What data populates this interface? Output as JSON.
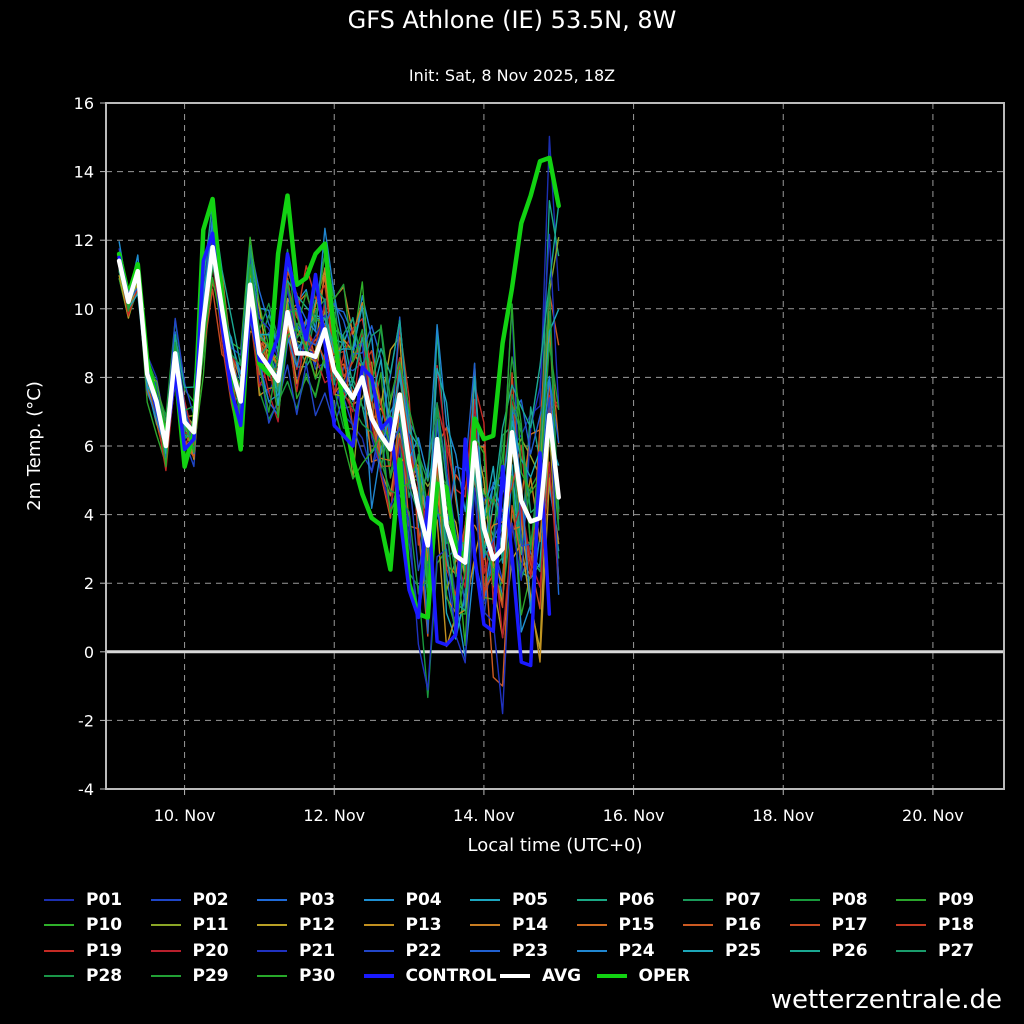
{
  "header": {
    "title": "GFS Athlone (IE) 53.5N, 8W",
    "subtitle": "Init: Sat, 8 Nov 2025, 18Z"
  },
  "watermark": "wetterzentrale.de",
  "colors": {
    "background": "#000000",
    "grid": "#9a9a9a",
    "frame": "#bbbbbb",
    "control": "#1a1aff",
    "avg": "#ffffff",
    "oper": "#12d212"
  },
  "chart_data": {
    "type": "line",
    "title": "GFS Athlone (IE) 53.5N, 8W",
    "subtitle": "Init: Sat, 8 Nov 2025, 18Z",
    "xlabel": "Local time (UTC+0)",
    "ylabel": "2m Temp. (°C)",
    "x_unit": "days since 9 Nov 00:00 UTC",
    "xlim": [
      -0.05,
      11.95
    ],
    "ylim": [
      -4,
      16
    ],
    "yticks": [
      -4,
      -2,
      0,
      2,
      4,
      6,
      8,
      10,
      12,
      14,
      16
    ],
    "xticks": [
      {
        "x": 1,
        "label": "10. Nov"
      },
      {
        "x": 3,
        "label": "12. Nov"
      },
      {
        "x": 5,
        "label": "14. Nov"
      },
      {
        "x": 7,
        "label": "16. Nov"
      },
      {
        "x": 9,
        "label": "18. Nov"
      },
      {
        "x": 11,
        "label": "20. Nov"
      }
    ],
    "grid": true,
    "x": [
      0.125,
      0.25,
      0.375,
      0.5,
      0.625,
      0.75,
      0.875,
      1.0,
      1.125,
      1.25,
      1.375,
      1.5,
      1.625,
      1.75,
      1.875,
      2.0,
      2.125,
      2.25,
      2.375,
      2.5,
      2.625,
      2.75,
      2.875,
      3.0,
      3.125,
      3.25,
      3.375,
      3.5,
      3.625,
      3.75,
      3.875,
      4.0,
      4.125,
      4.25,
      4.375,
      4.5,
      4.625,
      4.75,
      4.875,
      5.0,
      5.125,
      5.25,
      5.375,
      5.5,
      5.625,
      5.75,
      5.875,
      6.0,
      6.125,
      6.25,
      6.375,
      6.5,
      6.625,
      6.75,
      6.875,
      7.0,
      7.125,
      7.25,
      7.375,
      7.5,
      7.625,
      7.75,
      7.875,
      8.0,
      8.125,
      8.25,
      8.375,
      8.5,
      8.625,
      8.75,
      8.875,
      9.0,
      9.125,
      9.25,
      9.375,
      9.5,
      9.625,
      9.75,
      9.875,
      10.0,
      10.125,
      10.25,
      10.375,
      10.5,
      10.625,
      10.75,
      10.875,
      11.0,
      11.125,
      11.25,
      11.375,
      11.5,
      11.625,
      11.75
    ],
    "series": [
      {
        "name": "OPER",
        "color": "#12d212",
        "width": 4.5,
        "values": [
          11.6,
          10.4,
          11.3,
          8.5,
          7.3,
          6.2,
          8.3,
          5.4,
          6.4,
          12.3,
          13.2,
          10.3,
          7.7,
          5.9,
          10.4,
          8.4,
          8.1,
          11.6,
          13.3,
          10.7,
          10.9,
          11.6,
          11.9,
          9.3,
          7.0,
          5.6,
          4.6,
          3.9,
          3.7,
          2.4,
          5.6,
          2.0,
          1.1,
          1.0,
          4.9,
          4.8,
          3.0,
          2.8,
          6.8,
          6.2,
          6.3,
          9.0,
          10.6,
          12.5,
          13.3,
          14.3,
          14.4,
          13.0,
          null,
          null,
          null,
          null,
          null,
          null,
          null,
          null,
          null,
          null,
          null,
          null,
          null,
          null,
          null,
          null,
          null,
          null,
          null,
          null,
          null,
          null,
          null,
          null,
          null,
          null,
          null,
          null,
          null,
          null,
          null,
          null,
          null,
          null,
          null,
          null,
          null,
          null,
          null,
          null,
          null,
          null,
          null,
          null,
          null,
          null
        ]
      },
      {
        "name": "CONTROL",
        "color": "#1a1aff",
        "width": 3.5,
        "values": [
          11.5,
          10.3,
          11.1,
          8.2,
          7.1,
          6.0,
          8.1,
          5.9,
          6.2,
          11.4,
          12.2,
          9.5,
          7.6,
          6.6,
          10.0,
          8.5,
          8.4,
          9.2,
          11.6,
          10.2,
          9.1,
          11.0,
          9.0,
          6.6,
          6.3,
          6.0,
          8.3,
          8.0,
          6.5,
          6.8,
          4.0,
          1.8,
          1.0,
          4.5,
          0.3,
          0.2,
          0.5,
          6.2,
          2.8,
          0.8,
          0.6,
          5.4,
          2.8,
          -0.3,
          -0.4,
          5.8,
          1.1,
          null,
          null,
          null,
          null,
          null,
          null,
          null,
          null,
          null,
          null,
          null,
          null,
          null,
          null,
          null,
          null,
          null,
          null,
          null,
          null,
          null,
          null,
          null,
          null,
          null,
          null,
          null,
          null,
          null,
          null,
          null,
          null,
          null,
          null,
          null,
          null,
          null,
          null,
          null,
          null,
          null,
          null,
          null,
          null,
          null,
          null,
          null
        ]
      },
      {
        "name": "AVG",
        "color": "#ffffff",
        "width": 4.5,
        "values": [
          11.4,
          10.2,
          11.1,
          8.1,
          7.3,
          6.0,
          8.7,
          6.7,
          6.4,
          9.6,
          11.8,
          10.0,
          8.3,
          7.3,
          10.7,
          8.7,
          8.3,
          7.9,
          9.9,
          8.7,
          8.7,
          8.6,
          9.4,
          8.2,
          7.8,
          7.4,
          8.0,
          6.8,
          6.3,
          5.9,
          7.5,
          5.5,
          4.2,
          3.1,
          6.2,
          3.7,
          2.8,
          2.6,
          6.1,
          3.6,
          2.7,
          3.0,
          6.4,
          4.4,
          3.8,
          3.9,
          6.9,
          4.5,
          null,
          null,
          null,
          null,
          null,
          null,
          null,
          null,
          null,
          null,
          null,
          null,
          null,
          null,
          null,
          null,
          null,
          null,
          null,
          null,
          null,
          null,
          null,
          null,
          null,
          null,
          null,
          null,
          null,
          null,
          null,
          null,
          null,
          null,
          null,
          null,
          null,
          null,
          null,
          null,
          null,
          null,
          null,
          null,
          null,
          null
        ]
      }
    ],
    "ensemble_members": [
      {
        "name": "P01",
        "color": "#1c2fb0"
      },
      {
        "name": "P02",
        "color": "#1f46c8"
      },
      {
        "name": "P03",
        "color": "#1f6ad8"
      },
      {
        "name": "P04",
        "color": "#1e8fd2"
      },
      {
        "name": "P05",
        "color": "#1ca6bf"
      },
      {
        "name": "P06",
        "color": "#1aa885"
      },
      {
        "name": "P07",
        "color": "#1a9a5a"
      },
      {
        "name": "P08",
        "color": "#189a3c"
      },
      {
        "name": "P09",
        "color": "#2aa52c"
      },
      {
        "name": "P10",
        "color": "#2fb02a"
      },
      {
        "name": "P11",
        "color": "#8ba626"
      },
      {
        "name": "P12",
        "color": "#b9a025"
      },
      {
        "name": "P13",
        "color": "#c29020"
      },
      {
        "name": "P14",
        "color": "#c97d22"
      },
      {
        "name": "P15",
        "color": "#cf6b20"
      },
      {
        "name": "P16",
        "color": "#cc5a22"
      },
      {
        "name": "P17",
        "color": "#c84a22"
      },
      {
        "name": "P18",
        "color": "#c63a22"
      },
      {
        "name": "P19",
        "color": "#c42a24"
      },
      {
        "name": "P20",
        "color": "#b81f2c"
      },
      {
        "name": "P21",
        "color": "#2032c0"
      },
      {
        "name": "P22",
        "color": "#2246c8"
      },
      {
        "name": "P23",
        "color": "#2060d0"
      },
      {
        "name": "P24",
        "color": "#2086d0"
      },
      {
        "name": "P25",
        "color": "#1ca6b8"
      },
      {
        "name": "P26",
        "color": "#1aa892"
      },
      {
        "name": "P27",
        "color": "#1a9c6c"
      },
      {
        "name": "P28",
        "color": "#1a9648"
      },
      {
        "name": "P29",
        "color": "#22a035"
      },
      {
        "name": "P30",
        "color": "#28a82a"
      }
    ]
  }
}
